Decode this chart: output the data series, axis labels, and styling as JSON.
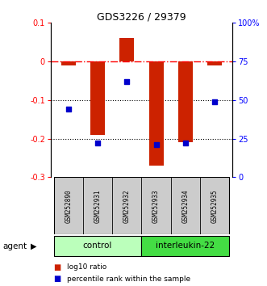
{
  "title": "GDS3226 / 29379",
  "samples": [
    "GSM252890",
    "GSM252931",
    "GSM252932",
    "GSM252933",
    "GSM252934",
    "GSM252935"
  ],
  "log10_ratio": [
    -0.01,
    -0.19,
    0.06,
    -0.27,
    -0.21,
    -0.01
  ],
  "percentile_rank": [
    44,
    22,
    62,
    21,
    22,
    49
  ],
  "ylim_left": [
    -0.3,
    0.1
  ],
  "ylim_right": [
    0,
    100
  ],
  "yticks_left": [
    0.1,
    0.0,
    -0.1,
    -0.2,
    -0.3
  ],
  "yticks_right": [
    100,
    75,
    50,
    25,
    0
  ],
  "ytick_labels_left": [
    "0.1",
    "0",
    "-0.1",
    "-0.2",
    "-0.3"
  ],
  "ytick_labels_right": [
    "100%",
    "75",
    "50",
    "25",
    "0"
  ],
  "hlines_dotted": [
    -0.1,
    -0.2
  ],
  "hline_dashed": 0.0,
  "bar_color": "#cc2200",
  "dot_color": "#0000cc",
  "control_color": "#bbffbb",
  "interleukin_color": "#44dd44",
  "sample_bg_color": "#cccccc",
  "legend_log10": "log10 ratio",
  "legend_pct": "percentile rank within the sample",
  "agent_label": "agent",
  "control_label": "control",
  "interleukin_label": "interleukin-22",
  "bar_width": 0.5
}
